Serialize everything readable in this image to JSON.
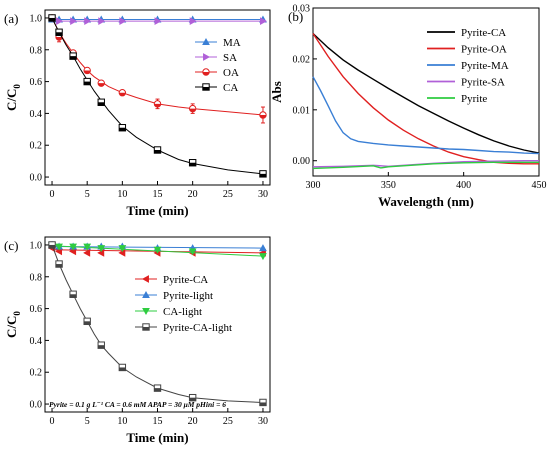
{
  "chart_data": [
    {
      "type": "scatter",
      "panel_label": "(a)",
      "xlabel": "Time (min)",
      "ylabel": "C/C",
      "ylabel_sub": "0",
      "xlim": [
        -1,
        31
      ],
      "ylim": [
        -0.05,
        1.05
      ],
      "xticks": [
        0,
        5,
        10,
        15,
        20,
        25,
        30
      ],
      "yticks": [
        0.0,
        0.2,
        0.4,
        0.6,
        0.8,
        1.0
      ],
      "ytick_labels": [
        "0.0",
        "0.2",
        "0.4",
        "0.6",
        "0.8",
        "1.0"
      ],
      "legend_position": "top-right",
      "series": [
        {
          "name": "MA",
          "color": "#3a7fd5",
          "marker": "triangle-up",
          "x": [
            0,
            1,
            3,
            5,
            7,
            10,
            15,
            20,
            30
          ],
          "y": [
            0.99,
            0.99,
            0.99,
            0.99,
            0.99,
            0.99,
            0.99,
            0.99,
            0.99
          ],
          "fit": [
            [
              0,
              0.99
            ],
            [
              30,
              0.99
            ]
          ]
        },
        {
          "name": "SA",
          "color": "#b060d8",
          "marker": "triangle-right",
          "x": [
            0,
            1,
            3,
            5,
            7,
            10,
            15,
            20,
            30
          ],
          "y": [
            1.0,
            0.98,
            0.98,
            0.98,
            0.98,
            0.98,
            0.98,
            0.98,
            0.98
          ],
          "fit": [
            [
              0,
              0.98
            ],
            [
              30,
              0.98
            ]
          ]
        },
        {
          "name": "OA",
          "color": "#e02020",
          "marker": "circle-half",
          "x": [
            0,
            1,
            3,
            5,
            7,
            10,
            15,
            20,
            30
          ],
          "y": [
            1.0,
            0.88,
            0.78,
            0.67,
            0.59,
            0.53,
            0.46,
            0.43,
            0.39
          ],
          "yerr": [
            0,
            0.03,
            0.01,
            0.01,
            0.01,
            0.01,
            0.03,
            0.03,
            0.05
          ],
          "fit": [
            [
              0,
              1.0
            ],
            [
              1,
              0.91
            ],
            [
              2,
              0.84
            ],
            [
              3,
              0.78
            ],
            [
              4,
              0.72
            ],
            [
              5,
              0.67
            ],
            [
              6,
              0.63
            ],
            [
              7,
              0.6
            ],
            [
              8,
              0.57
            ],
            [
              10,
              0.53
            ],
            [
              12,
              0.5
            ],
            [
              15,
              0.46
            ],
            [
              18,
              0.44
            ],
            [
              20,
              0.43
            ],
            [
              25,
              0.41
            ],
            [
              30,
              0.39
            ]
          ]
        },
        {
          "name": "CA",
          "color": "#000000",
          "marker": "square-half",
          "x": [
            0,
            1,
            3,
            5,
            7,
            10,
            15,
            20,
            30
          ],
          "y": [
            1.0,
            0.91,
            0.76,
            0.6,
            0.47,
            0.31,
            0.17,
            0.09,
            0.02
          ],
          "fit": [
            [
              0,
              1.0
            ],
            [
              1,
              0.91
            ],
            [
              2,
              0.83
            ],
            [
              3,
              0.76
            ],
            [
              4,
              0.68
            ],
            [
              5,
              0.61
            ],
            [
              6,
              0.54
            ],
            [
              7,
              0.48
            ],
            [
              8,
              0.42
            ],
            [
              10,
              0.32
            ],
            [
              12,
              0.25
            ],
            [
              15,
              0.17
            ],
            [
              18,
              0.11
            ],
            [
              20,
              0.085
            ],
            [
              25,
              0.045
            ],
            [
              30,
              0.02
            ]
          ]
        }
      ]
    },
    {
      "type": "line",
      "panel_label": "(b)",
      "xlabel": "Wavelength (nm)",
      "ylabel": "Abs",
      "xlim": [
        300,
        450
      ],
      "ylim": [
        -0.003,
        0.03
      ],
      "xticks": [
        300,
        350,
        400,
        450
      ],
      "yticks": [
        0.0,
        0.01,
        0.02,
        0.03
      ],
      "ytick_labels": [
        "0.00",
        "0.01",
        "0.02",
        "0.03"
      ],
      "legend_position": "top-right",
      "series": [
        {
          "name": "Pyrite-CA",
          "color": "#000000",
          "x": [
            300,
            310,
            320,
            330,
            340,
            350,
            360,
            370,
            380,
            390,
            400,
            410,
            420,
            430,
            440,
            450
          ],
          "y": [
            0.025,
            0.0222,
            0.0198,
            0.0178,
            0.016,
            0.0142,
            0.0125,
            0.0108,
            0.0093,
            0.0078,
            0.0064,
            0.0051,
            0.0039,
            0.0029,
            0.0021,
            0.0015
          ]
        },
        {
          "name": "Pyrite-OA",
          "color": "#e02020",
          "x": [
            300,
            310,
            320,
            330,
            340,
            350,
            360,
            370,
            380,
            390,
            400,
            410,
            420,
            430,
            440,
            450
          ],
          "y": [
            0.025,
            0.0205,
            0.0165,
            0.0132,
            0.0104,
            0.008,
            0.006,
            0.0043,
            0.0029,
            0.0017,
            0.0008,
            0.0002,
            -0.0003,
            -0.0005,
            -0.0006,
            -0.0006
          ]
        },
        {
          "name": "Pyrite-MA",
          "color": "#3a7fd5",
          "x": [
            300,
            305,
            310,
            315,
            320,
            325,
            330,
            340,
            350,
            360,
            370,
            380,
            390,
            400,
            410,
            420,
            430,
            440,
            450
          ],
          "y": [
            0.0165,
            0.0138,
            0.0108,
            0.0078,
            0.0055,
            0.0043,
            0.0038,
            0.0034,
            0.0031,
            0.0029,
            0.0027,
            0.0025,
            0.0023,
            0.0022,
            0.002,
            0.0018,
            0.0017,
            0.0015,
            0.0014
          ]
        },
        {
          "name": "Pyrite-SA",
          "color": "#b060d8",
          "x": [
            300,
            320,
            340,
            350,
            360,
            380,
            400,
            420,
            440,
            450
          ],
          "y": [
            -0.0012,
            -0.0011,
            -0.0009,
            -0.0011,
            -0.0009,
            -0.0005,
            -0.0002,
            -0.0001,
            0.0,
            0.0
          ]
        },
        {
          "name": "Pyrite",
          "color": "#2ecc40",
          "x": [
            300,
            320,
            340,
            345,
            350,
            360,
            380,
            400,
            420,
            440,
            450
          ],
          "y": [
            -0.0015,
            -0.0013,
            -0.001,
            -0.0014,
            -0.0012,
            -0.001,
            -0.0006,
            -0.0004,
            -0.0003,
            -0.0003,
            -0.0003
          ]
        }
      ]
    },
    {
      "type": "scatter",
      "panel_label": "(c)",
      "xlabel": "Time (min)",
      "ylabel": "C/C",
      "ylabel_sub": "0",
      "xlim": [
        -1,
        31
      ],
      "ylim": [
        -0.05,
        1.05
      ],
      "xticks": [
        0,
        5,
        10,
        15,
        20,
        25,
        30
      ],
      "yticks": [
        0.0,
        0.2,
        0.4,
        0.6,
        0.8,
        1.0
      ],
      "ytick_labels": [
        "0.0",
        "0.2",
        "0.4",
        "0.6",
        "0.8",
        "1.0"
      ],
      "legend_position": "center-right",
      "annotation": "Pyrite = 0.1 g L⁻¹   CA = 0.6 mM   APAP = 30 μM   pHini = 6",
      "series": [
        {
          "name": "Pyrite-CA",
          "color": "#e02020",
          "marker": "triangle-left",
          "x": [
            0,
            1,
            3,
            5,
            7,
            10,
            15,
            20,
            30
          ],
          "y": [
            0.98,
            0.96,
            0.96,
            0.95,
            0.95,
            0.95,
            0.95,
            0.95,
            0.95
          ],
          "fit": [
            [
              0,
              0.97
            ],
            [
              30,
              0.95
            ]
          ]
        },
        {
          "name": "Pyrite-light",
          "color": "#3a7fd5",
          "marker": "triangle-up",
          "x": [
            0,
            1,
            3,
            5,
            7,
            10,
            15,
            20,
            30
          ],
          "y": [
            1.0,
            0.99,
            0.99,
            0.99,
            0.99,
            0.99,
            0.98,
            0.98,
            0.98
          ],
          "fit": [
            [
              0,
              0.99
            ],
            [
              30,
              0.98
            ]
          ]
        },
        {
          "name": "CA-light",
          "color": "#2ecc40",
          "marker": "triangle-down",
          "x": [
            0,
            1,
            3,
            5,
            7,
            10,
            15,
            20,
            30
          ],
          "y": [
            1.0,
            0.99,
            0.99,
            0.99,
            0.98,
            0.98,
            0.97,
            0.96,
            0.93
          ],
          "fit": [
            [
              0,
              0.995
            ],
            [
              30,
              0.93
            ]
          ]
        },
        {
          "name": "Pyrite-CA-light",
          "color": "#444444",
          "marker": "square-half",
          "x": [
            0,
            1,
            3,
            5,
            7,
            10,
            15,
            20,
            30
          ],
          "y": [
            1.0,
            0.88,
            0.69,
            0.52,
            0.37,
            0.23,
            0.1,
            0.04,
            0.01
          ],
          "fit": [
            [
              0,
              1.0
            ],
            [
              1,
              0.88
            ],
            [
              2,
              0.78
            ],
            [
              3,
              0.69
            ],
            [
              4,
              0.6
            ],
            [
              5,
              0.52
            ],
            [
              6,
              0.44
            ],
            [
              7,
              0.37
            ],
            [
              8,
              0.32
            ],
            [
              10,
              0.23
            ],
            [
              12,
              0.17
            ],
            [
              15,
              0.1
            ],
            [
              18,
              0.06
            ],
            [
              20,
              0.04
            ],
            [
              25,
              0.02
            ],
            [
              30,
              0.01
            ]
          ]
        }
      ]
    }
  ]
}
